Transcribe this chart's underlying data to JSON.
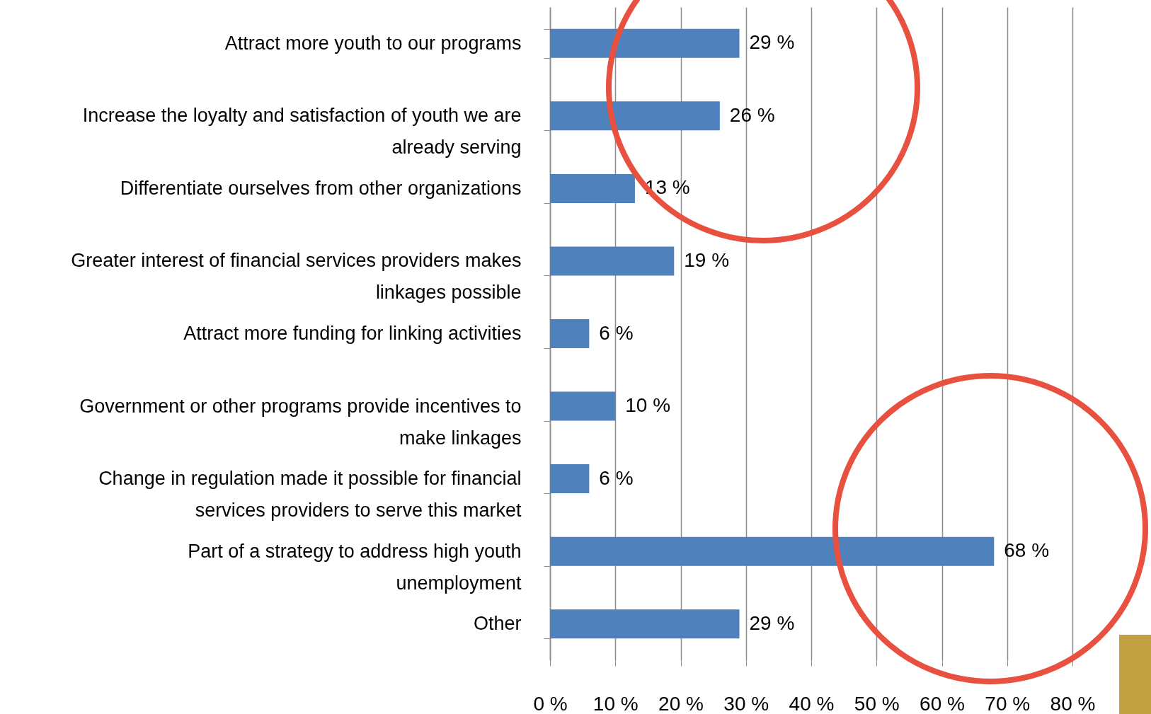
{
  "chart_data": {
    "type": "bar",
    "orientation": "horizontal",
    "categories": [
      "Attract more youth to our programs",
      "Increase the loyalty and satisfaction of youth we are already serving",
      "Differentiate ourselves from other organizations",
      "Greater interest of financial services providers makes linkages possible",
      "Attract more funding for linking activities",
      "Government or other programs provide incentives to make linkages",
      "Change in regulation made it possible for financial services providers to serve this market",
      "Part of a strategy to address high youth unemployment",
      "Other"
    ],
    "values": [
      29,
      26,
      13,
      19,
      6,
      10,
      6,
      68,
      29
    ],
    "value_labels": [
      "29 %",
      "26 %",
      "13 %",
      "19 %",
      "6 %",
      "10 %",
      "6 %",
      "68 %",
      "29 %"
    ],
    "color": "#4f81bd",
    "xlim": [
      0,
      80
    ],
    "xticks": [
      {
        "value": 0,
        "label": "0 %"
      },
      {
        "value": 10,
        "label": "10 %"
      },
      {
        "value": 20,
        "label": "20 %"
      },
      {
        "value": 30,
        "label": "30 %"
      },
      {
        "value": 40,
        "label": "40 %"
      },
      {
        "value": 50,
        "label": "50 %"
      },
      {
        "value": 60,
        "label": "60 %"
      },
      {
        "value": 70,
        "label": "70 %"
      },
      {
        "value": 80,
        "label": "80 %"
      }
    ],
    "grid": "x"
  }
}
